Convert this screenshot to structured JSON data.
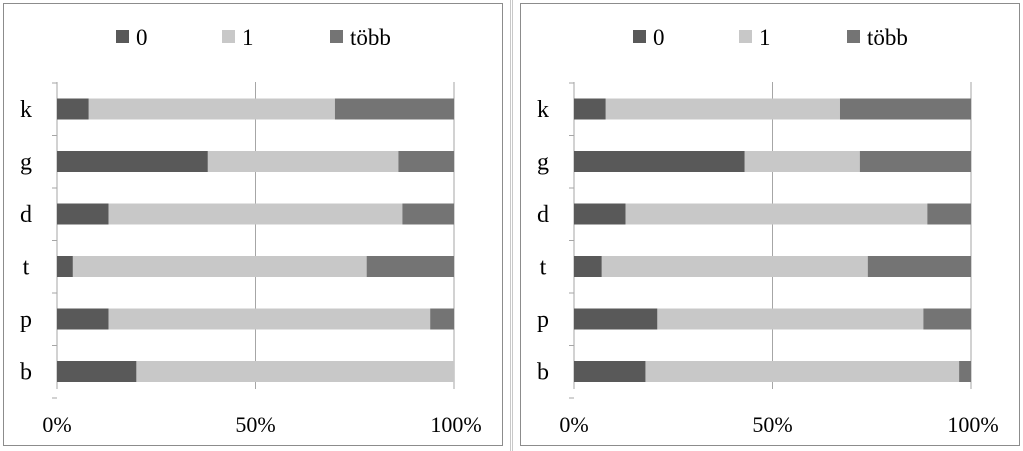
{
  "colors": {
    "zero": "#595959",
    "one": "#c8c8c8",
    "more": "#747474",
    "grid": "#a6a6a6"
  },
  "chart_data": [
    {
      "type": "bar",
      "orientation": "horizontal",
      "stacked": "percent",
      "categories": [
        "k",
        "g",
        "d",
        "t",
        "p",
        "b"
      ],
      "series": [
        {
          "name": "0",
          "values": [
            8,
            38,
            13,
            4,
            13,
            20
          ]
        },
        {
          "name": "1",
          "values": [
            62,
            48,
            74,
            74,
            81,
            80
          ]
        },
        {
          "name": "több",
          "values": [
            30,
            14,
            13,
            22,
            6,
            0
          ]
        }
      ],
      "xticks": [
        "0%",
        "50%",
        "100%"
      ],
      "xlim": [
        0,
        100
      ],
      "grid": "vertical",
      "legend": "top"
    },
    {
      "type": "bar",
      "orientation": "horizontal",
      "stacked": "percent",
      "categories": [
        "k",
        "g",
        "d",
        "t",
        "p",
        "b"
      ],
      "series": [
        {
          "name": "0",
          "values": [
            8,
            43,
            13,
            7,
            21,
            18
          ]
        },
        {
          "name": "1",
          "values": [
            59,
            29,
            76,
            67,
            67,
            79
          ]
        },
        {
          "name": "több",
          "values": [
            33,
            28,
            11,
            26,
            12,
            3
          ]
        }
      ],
      "xticks": [
        "0%",
        "50%",
        "100%"
      ],
      "xlim": [
        0,
        100
      ],
      "grid": "vertical",
      "legend": "top"
    }
  ]
}
